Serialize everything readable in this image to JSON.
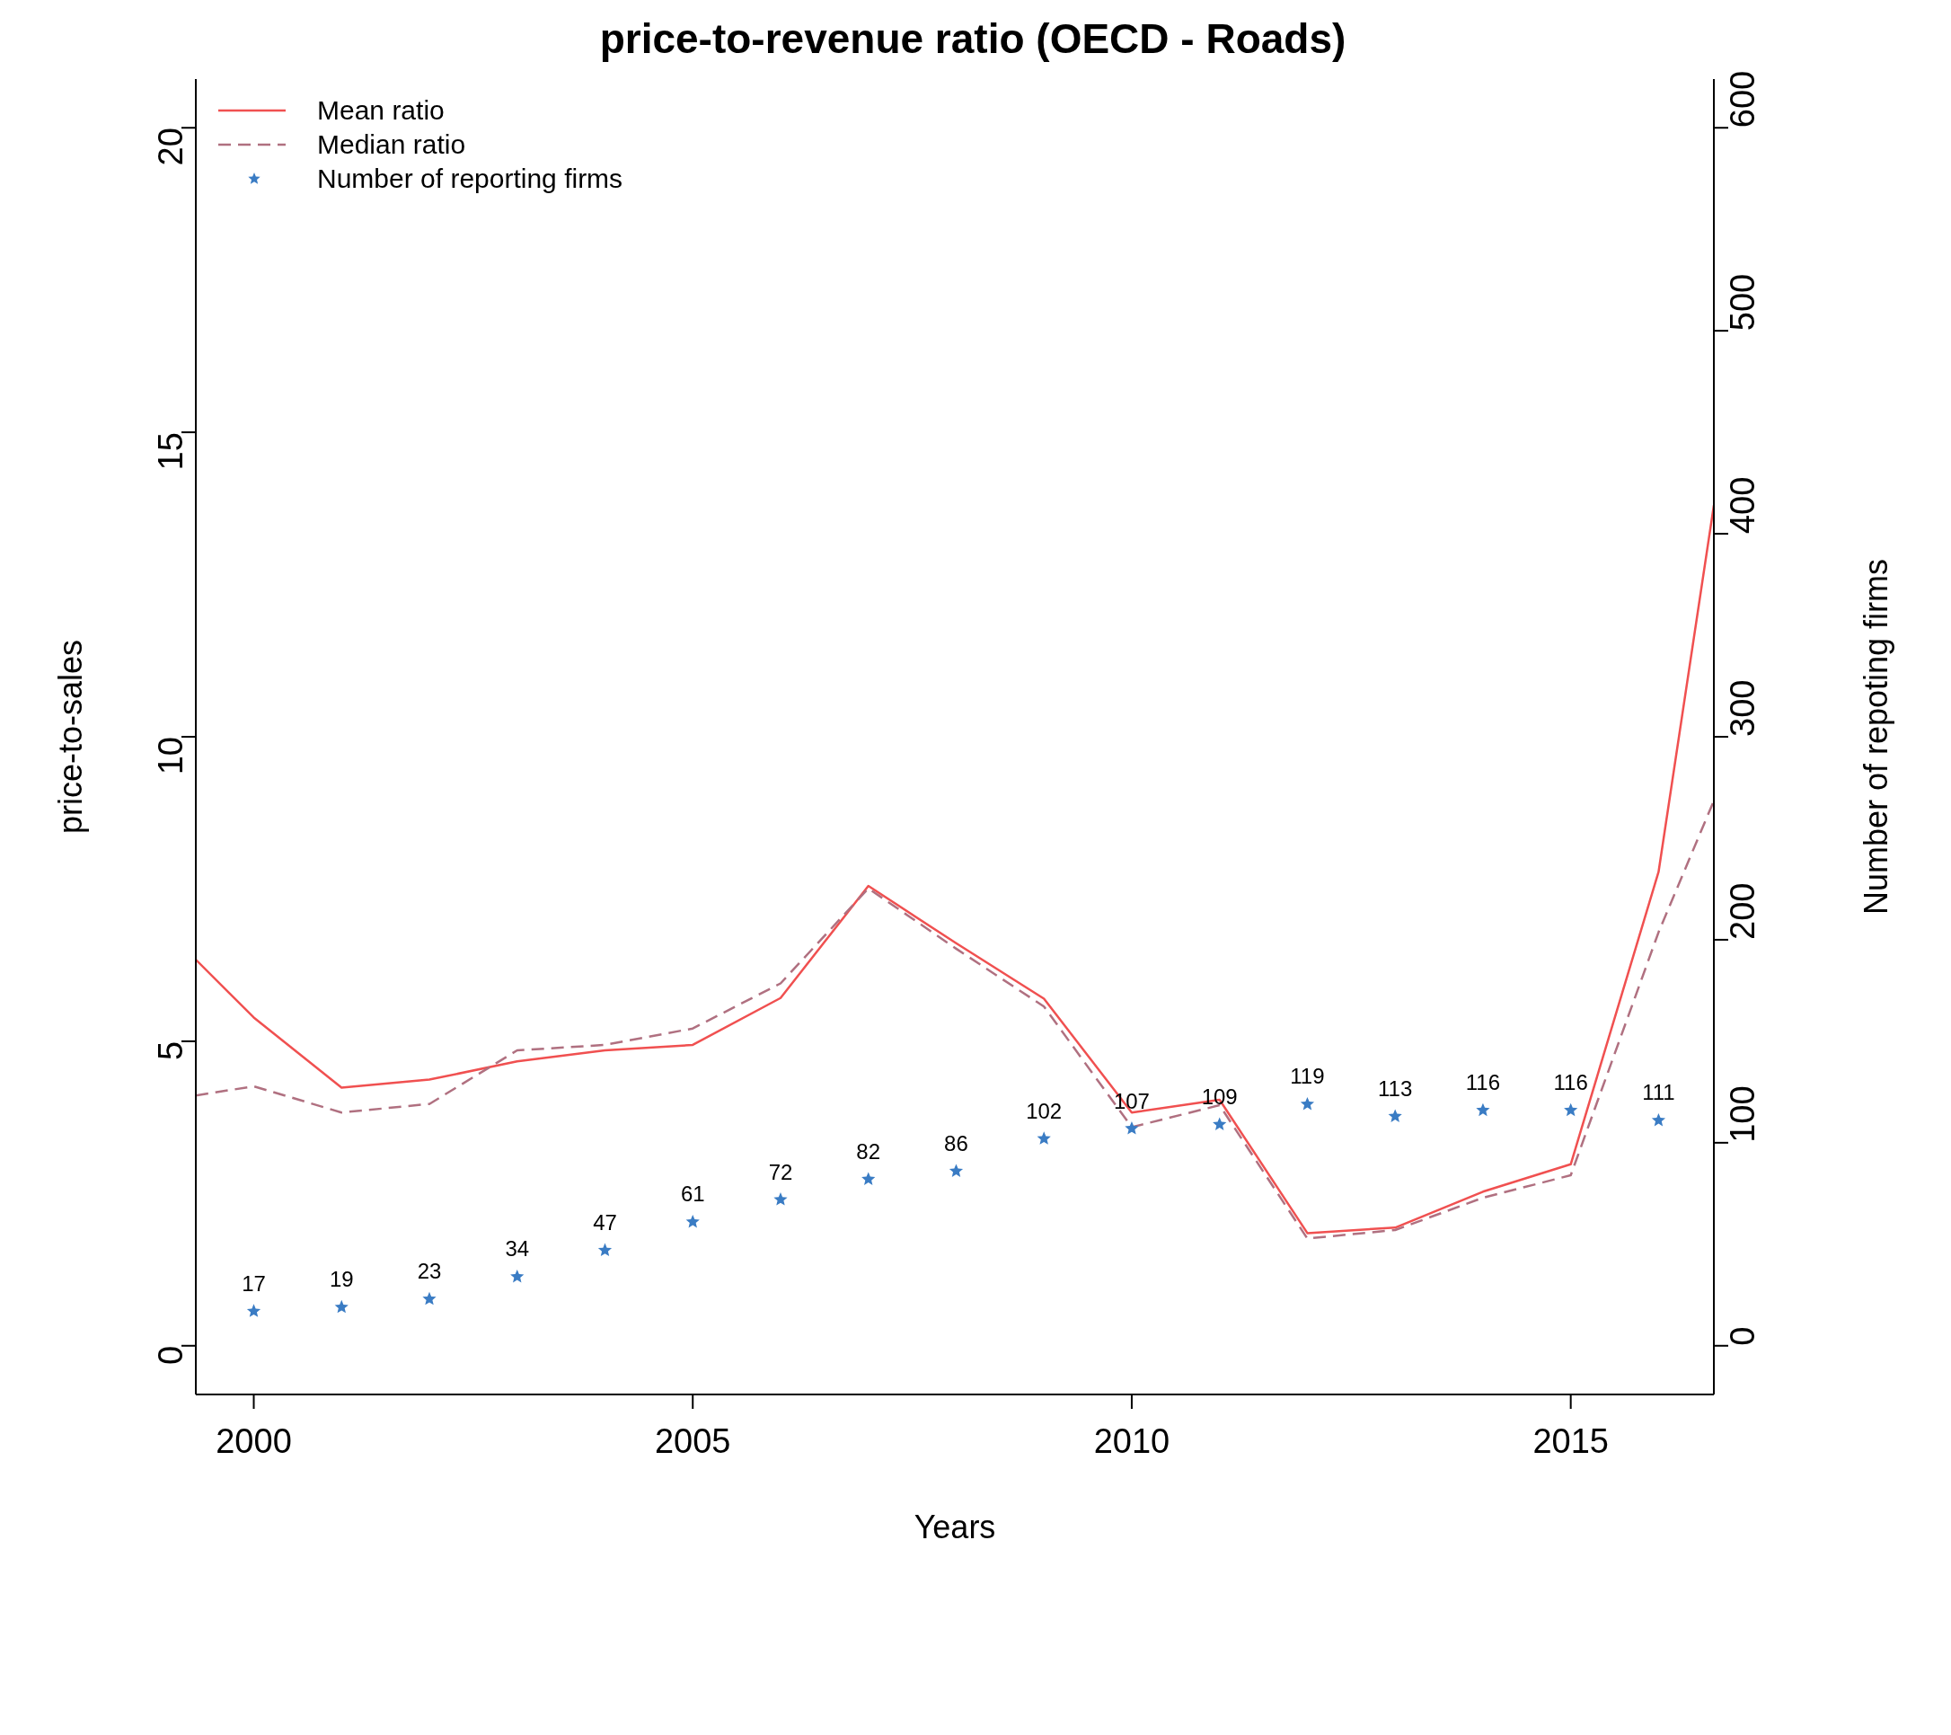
{
  "chart_data": {
    "type": "line",
    "title": "price-to-revenue ratio (OECD - Roads)",
    "xlabel": "Years",
    "ylabel": "price-to-sales",
    "y2label": "Number of repoting firms",
    "series": [
      {
        "name": "Mean ratio",
        "color": "#f05050",
        "line_style": "solid",
        "marker": "none",
        "x": [
          1999.34,
          2000,
          2001,
          2002,
          2003,
          2004,
          2005,
          2006,
          2007,
          2008,
          2009,
          2010,
          2011,
          2012,
          2013,
          2014,
          2015,
          2016,
          2016.63
        ],
        "values": [
          6.34,
          5.39,
          4.24,
          4.37,
          4.67,
          4.85,
          4.94,
          5.71,
          7.55,
          6.61,
          5.7,
          3.83,
          4.04,
          1.85,
          1.94,
          2.53,
          2.98,
          7.78,
          13.8
        ]
      },
      {
        "name": "Median ratio",
        "color": "#b07080",
        "line_style": "dashed",
        "marker": "none",
        "x": [
          1999.34,
          2000,
          2001,
          2002,
          2003,
          2004,
          2005,
          2006,
          2007,
          2008,
          2009,
          2010,
          2011,
          2012,
          2013,
          2014,
          2015,
          2016,
          2016.63
        ],
        "values": [
          4.11,
          4.26,
          3.83,
          3.97,
          4.85,
          4.94,
          5.21,
          5.95,
          7.51,
          6.52,
          5.57,
          3.59,
          3.95,
          1.76,
          1.9,
          2.43,
          2.8,
          6.79,
          8.95
        ]
      },
      {
        "name": "Number of reporting firms",
        "type": "scatter",
        "axis": "y2",
        "color": "#3a7cc4",
        "marker": "star",
        "data_labels": true,
        "x": [
          2000,
          2001,
          2002,
          2003,
          2004,
          2005,
          2006,
          2007,
          2008,
          2009,
          2010,
          2011,
          2012,
          2013,
          2014,
          2015,
          2016
        ],
        "values": [
          17,
          19,
          23,
          34,
          47,
          61,
          72,
          82,
          86,
          102,
          107,
          109,
          119,
          113,
          116,
          116,
          111
        ]
      }
    ],
    "xlim": [
      1999.34,
      2016.63
    ],
    "xticks": [
      2000,
      2005,
      2010,
      2015
    ],
    "ylim": [
      -0.8,
      20.8
    ],
    "yticks": [
      0,
      5,
      10,
      15,
      20
    ],
    "y2lim": [
      -24,
      624
    ],
    "y2ticks": [
      0,
      100,
      200,
      300,
      400,
      500,
      600
    ],
    "grid": false,
    "legend": "top left"
  }
}
